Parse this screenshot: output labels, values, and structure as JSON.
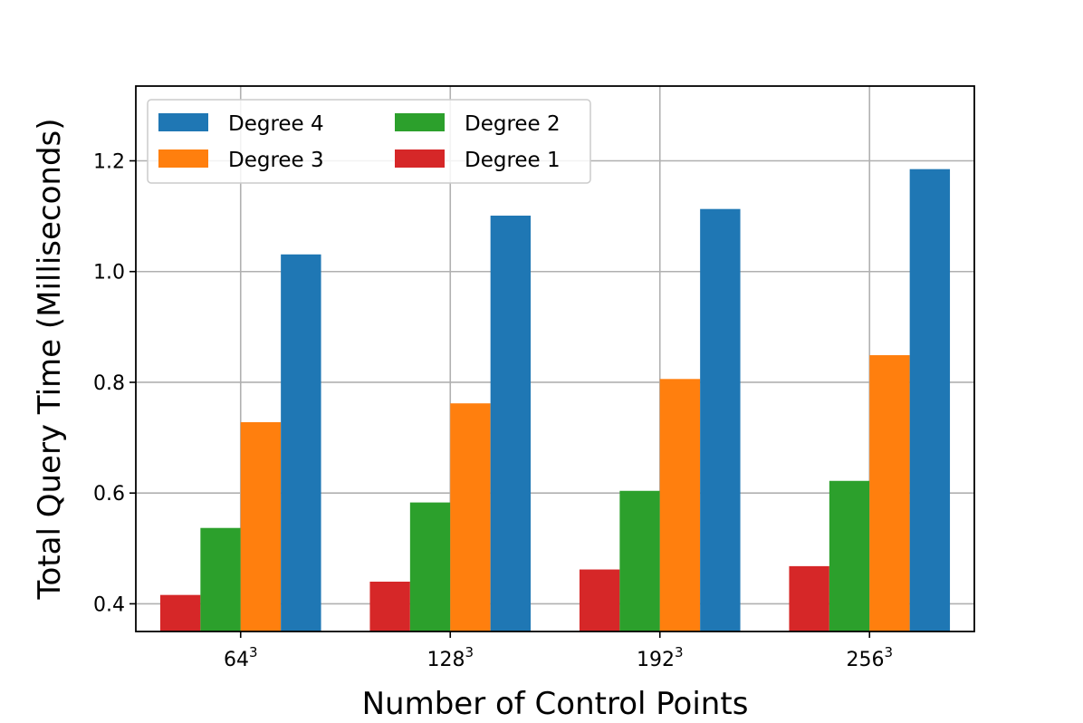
{
  "chart_data": {
    "type": "bar",
    "title": "",
    "xlabel": "Number of Control Points",
    "ylabel": "Total Query Time (Milliseconds)",
    "categories": [
      {
        "base": "64",
        "exp": "3"
      },
      {
        "base": "128",
        "exp": "3"
      },
      {
        "base": "192",
        "exp": "3"
      },
      {
        "base": "256",
        "exp": "3"
      }
    ],
    "series": [
      {
        "name": "Degree 1",
        "color": "#d62728",
        "values": [
          0.416,
          0.44,
          0.462,
          0.468
        ]
      },
      {
        "name": "Degree 2",
        "color": "#2ca02c",
        "values": [
          0.537,
          0.583,
          0.604,
          0.622
        ]
      },
      {
        "name": "Degree 3",
        "color": "#ff7f0e",
        "values": [
          0.728,
          0.762,
          0.806,
          0.849
        ]
      },
      {
        "name": "Degree 4",
        "color": "#1f77b4",
        "values": [
          1.031,
          1.101,
          1.113,
          1.185
        ]
      }
    ],
    "ylim": [
      0.35,
      1.335
    ],
    "yticks": [
      "0.4",
      "0.6",
      "0.8",
      "1.0",
      "1.2"
    ],
    "grid": true,
    "legend": {
      "placement": "top-left",
      "columns": 2,
      "order": [
        "Degree 4",
        "Degree 3",
        "Degree 2",
        "Degree 1"
      ]
    }
  }
}
